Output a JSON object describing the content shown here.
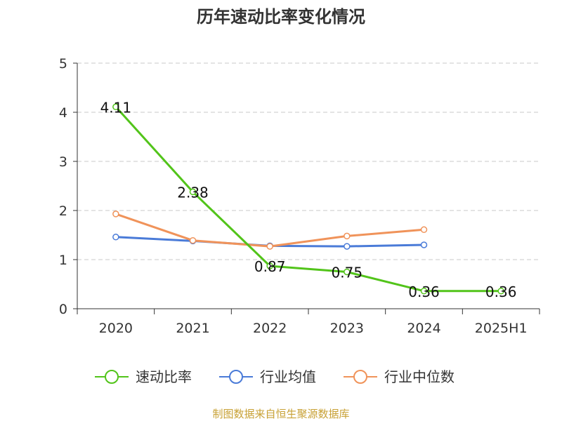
{
  "chart_data": {
    "type": "line",
    "title": "历年速动比率变化情况",
    "xlabel": "",
    "ylabel": "",
    "categories": [
      "2020",
      "2021",
      "2022",
      "2023",
      "2024",
      "2025H1"
    ],
    "ylim": [
      0,
      5
    ],
    "yticks": [
      "0",
      "1",
      "2",
      "3",
      "4",
      "5"
    ],
    "grid": true,
    "legend_position": "bottom",
    "series": [
      {
        "name": "速动比率",
        "color": "#52c41a",
        "values": [
          4.11,
          2.38,
          0.87,
          0.75,
          0.36,
          0.36
        ],
        "labels": [
          "4.11",
          "2.38",
          "0.87",
          "0.75",
          "0.36",
          "0.36"
        ]
      },
      {
        "name": "行业均值",
        "color": "#4a7bd8",
        "values": [
          1.46,
          1.38,
          1.28,
          1.27,
          1.3,
          null
        ]
      },
      {
        "name": "行业中位数",
        "color": "#f0935a",
        "values": [
          1.93,
          1.39,
          1.27,
          1.48,
          1.61,
          null
        ]
      }
    ]
  },
  "source": "制图数据来自恒生聚源数据库"
}
